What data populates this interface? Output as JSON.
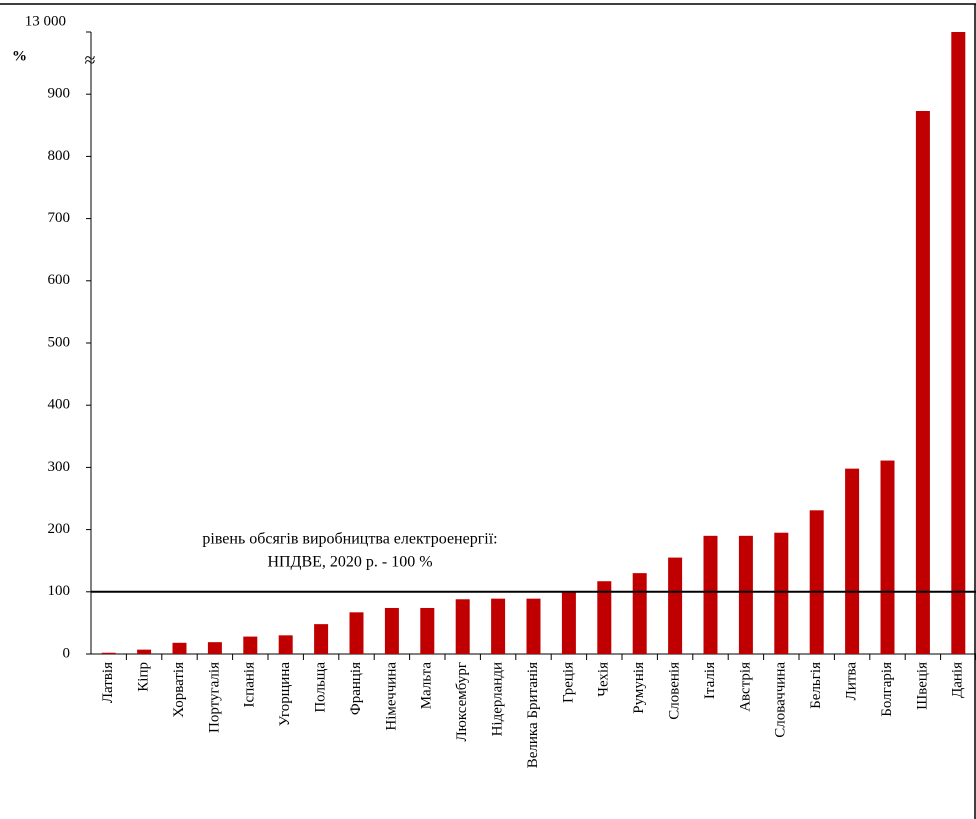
{
  "chart_data": {
    "type": "bar",
    "y_axis_label": "%",
    "axis_break": "≈",
    "categories": [
      "Латвія",
      "Кіпр",
      "Хорватія",
      "Португалія",
      "Іспанія",
      "Угорщина",
      "Польща",
      "Франція",
      "Німеччина",
      "Мальта",
      "Люксембург",
      "Нідерланди",
      "Велика Британія",
      "Греція",
      "Чехія",
      "Румунія",
      "Словенія",
      "Італія",
      "Австрія",
      "Словаччина",
      "Бельгія",
      "Литва",
      "Болгарія",
      "Швеція",
      "Данія"
    ],
    "values": [
      2,
      7,
      18,
      19,
      28,
      30,
      48,
      67,
      74,
      74,
      88,
      89,
      89,
      101,
      117,
      130,
      155,
      190,
      190,
      195,
      231,
      298,
      311,
      873,
      13000
    ],
    "color": "#c00000",
    "ylim": [
      0,
      13000
    ],
    "yticks": [
      0,
      100,
      200,
      300,
      400,
      500,
      600,
      700,
      800,
      900,
      {
        "value": 13000,
        "label": "13 000"
      }
    ],
    "reference_line": {
      "value": 100,
      "label": [
        "рівень обсягів виробництва електроенергії:",
        "НПДВЕ, 2020 р. - 100 %"
      ]
    }
  }
}
